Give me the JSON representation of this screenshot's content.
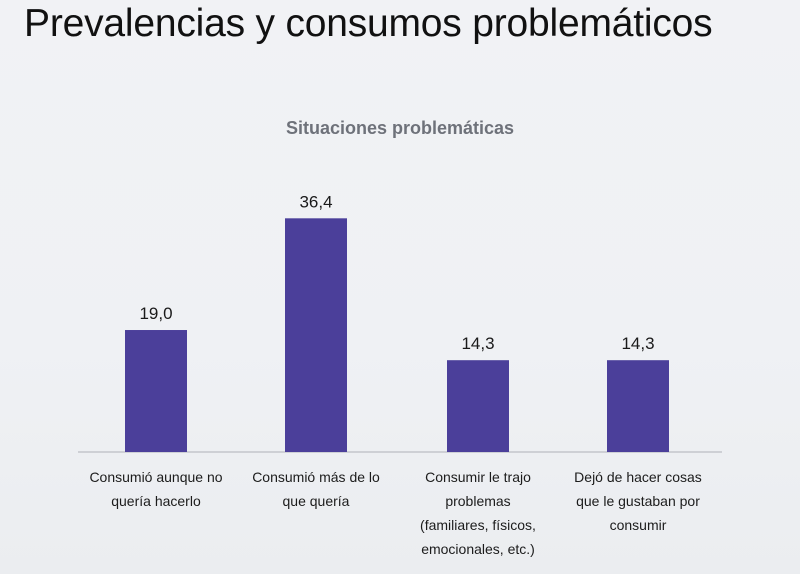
{
  "slide": {
    "title": "Prevalencias y consumos problemáticos"
  },
  "colors": {
    "bar": "#4b3f9a",
    "axis": "#c4c6cb"
  },
  "chart_data": {
    "type": "bar",
    "title": "Situaciones problemáticas",
    "categories": [
      [
        "Consumió aunque no",
        "quería hacerlo"
      ],
      [
        "Consumió más de lo",
        "que quería"
      ],
      [
        "Consumir le trajo",
        "problemas",
        "(familiares, físicos,",
        "emocionales, etc.)"
      ],
      [
        "Dejó de hacer cosas",
        "que le gustaban por",
        "consumir"
      ]
    ],
    "values": [
      19.0,
      36.4,
      14.3,
      14.3
    ],
    "value_labels": [
      "19,0",
      "36,4",
      "14,3",
      "14,3"
    ],
    "xlabel": "",
    "ylabel": "",
    "ylim": [
      0,
      40
    ],
    "grid": false,
    "legend": "none"
  }
}
